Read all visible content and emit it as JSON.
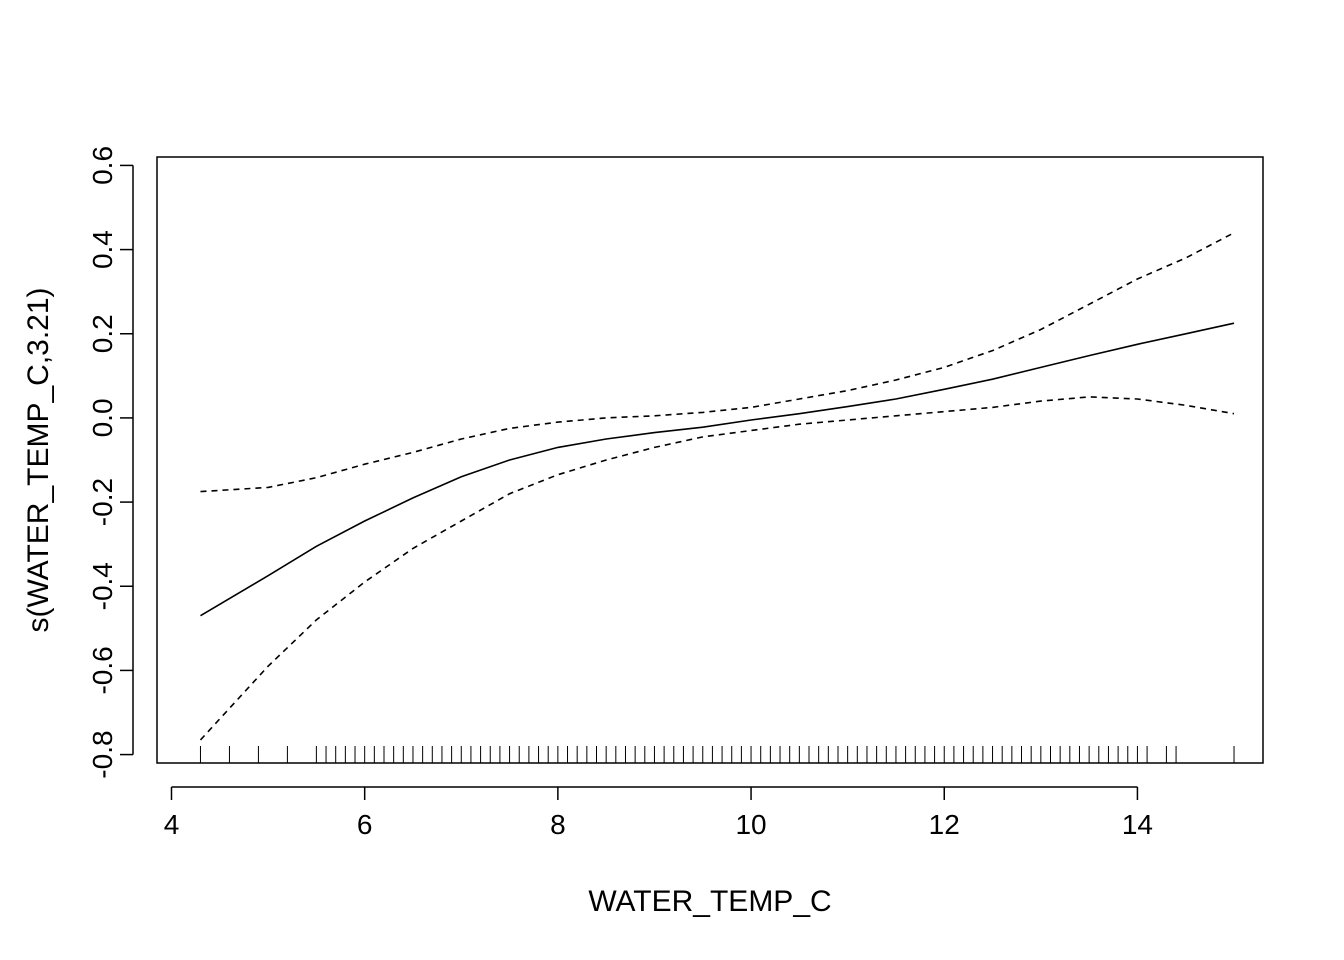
{
  "chart_data": {
    "type": "line",
    "title": "",
    "xlabel": "WATER_TEMP_C",
    "ylabel": "s(WATER_TEMP_C,3.21)",
    "xlim": [
      3.85,
      15.3
    ],
    "ylim": [
      -0.82,
      0.62
    ],
    "x_ticks": [
      4,
      6,
      8,
      10,
      12,
      14
    ],
    "x_tick_labels": [
      "4",
      "6",
      "8",
      "10",
      "12",
      "14"
    ],
    "y_ticks": [
      -0.8,
      -0.6,
      -0.4,
      -0.2,
      0.0,
      0.2,
      0.4,
      0.6
    ],
    "y_tick_labels": [
      "-0.8",
      "-0.6",
      "-0.4",
      "-0.2",
      "0.0",
      "0.2",
      "0.4",
      "0.6"
    ],
    "grid": false,
    "x": [
      4.3,
      5.0,
      5.5,
      6.0,
      6.5,
      7.0,
      7.5,
      8.0,
      8.5,
      9.0,
      9.5,
      10.0,
      10.5,
      11.0,
      11.5,
      12.0,
      12.5,
      13.0,
      13.5,
      14.0,
      14.5,
      15.0
    ],
    "series": [
      {
        "style": "solid",
        "values": [
          -0.47,
          -0.375,
          -0.305,
          -0.245,
          -0.19,
          -0.14,
          -0.1,
          -0.07,
          -0.05,
          -0.035,
          -0.022,
          -0.005,
          0.01,
          0.027,
          0.045,
          0.068,
          0.092,
          0.12,
          0.148,
          0.175,
          0.2,
          0.225
        ]
      },
      {
        "style": "dashed",
        "values": [
          -0.175,
          -0.165,
          -0.142,
          -0.11,
          -0.082,
          -0.05,
          -0.025,
          -0.01,
          0.0,
          0.005,
          0.013,
          0.025,
          0.045,
          0.065,
          0.09,
          0.12,
          0.16,
          0.21,
          0.27,
          0.33,
          0.38,
          0.44
        ]
      },
      {
        "style": "dashed",
        "values": [
          -0.765,
          -0.59,
          -0.48,
          -0.39,
          -0.31,
          -0.245,
          -0.18,
          -0.135,
          -0.1,
          -0.07,
          -0.045,
          -0.03,
          -0.015,
          -0.005,
          0.005,
          0.015,
          0.025,
          0.04,
          0.05,
          0.045,
          0.03,
          0.01
        ]
      }
    ],
    "rug": [
      4.3,
      4.6,
      4.9,
      5.2,
      5.5,
      5.6,
      5.7,
      5.8,
      5.9,
      6.0,
      6.1,
      6.2,
      6.3,
      6.4,
      6.5,
      6.6,
      6.7,
      6.8,
      6.9,
      7.0,
      7.1,
      7.2,
      7.3,
      7.4,
      7.5,
      7.6,
      7.7,
      7.8,
      7.9,
      8.0,
      8.1,
      8.2,
      8.3,
      8.4,
      8.5,
      8.6,
      8.7,
      8.8,
      8.9,
      9.0,
      9.1,
      9.2,
      9.3,
      9.4,
      9.5,
      9.6,
      9.7,
      9.8,
      9.9,
      10.0,
      10.1,
      10.2,
      10.3,
      10.4,
      10.5,
      10.6,
      10.7,
      10.8,
      10.9,
      11.0,
      11.1,
      11.2,
      11.3,
      11.4,
      11.5,
      11.6,
      11.7,
      11.8,
      11.9,
      12.0,
      12.1,
      12.2,
      12.3,
      12.4,
      12.5,
      12.6,
      12.7,
      12.8,
      12.9,
      13.0,
      13.1,
      13.2,
      13.3,
      13.4,
      13.5,
      13.6,
      13.7,
      13.8,
      13.9,
      14.0,
      14.1,
      14.3,
      14.4,
      15.0
    ]
  }
}
